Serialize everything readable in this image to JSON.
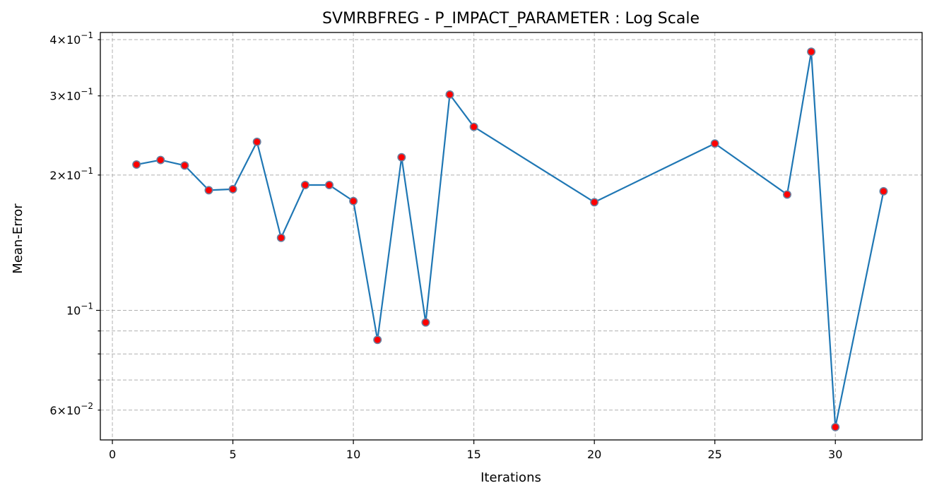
{
  "chart_data": {
    "type": "line",
    "title": "SVMRBFREG - P_IMPACT_PARAMETER : Log Scale",
    "xlabel": "Iterations",
    "ylabel": "Mean-Error",
    "yscale": "log",
    "xlim": [
      -0.5,
      33.6
    ],
    "ylim": [
      0.0515,
      0.415
    ],
    "grid": true,
    "x_ticks": [
      0,
      5,
      10,
      15,
      20,
      25,
      30
    ],
    "y_major_ticks": [
      {
        "value": 0.1,
        "mantissa": "",
        "base": "10",
        "exp": "−1"
      }
    ],
    "y_minor_ticks": [
      {
        "value": 0.06,
        "mantissa": "6",
        "base": "10",
        "exp": "−2"
      },
      {
        "value": 0.07,
        "mantissa": "",
        "base": "",
        "exp": ""
      },
      {
        "value": 0.08,
        "mantissa": "",
        "base": "",
        "exp": ""
      },
      {
        "value": 0.09,
        "mantissa": "",
        "base": "",
        "exp": ""
      },
      {
        "value": 0.2,
        "mantissa": "2",
        "base": "10",
        "exp": "−1"
      },
      {
        "value": 0.3,
        "mantissa": "3",
        "base": "10",
        "exp": "−1"
      },
      {
        "value": 0.4,
        "mantissa": "4",
        "base": "10",
        "exp": "−1"
      }
    ],
    "series": [
      {
        "line_color": "#1f77b4",
        "marker_face": "#ff0000",
        "marker_edge": "#6a80a0",
        "points": [
          {
            "x": 1,
            "y": 0.211
          },
          {
            "x": 2,
            "y": 0.216
          },
          {
            "x": 3,
            "y": 0.21
          },
          {
            "x": 4,
            "y": 0.185
          },
          {
            "x": 5,
            "y": 0.186
          },
          {
            "x": 6,
            "y": 0.237
          },
          {
            "x": 7,
            "y": 0.145
          },
          {
            "x": 8,
            "y": 0.19
          },
          {
            "x": 9,
            "y": 0.19
          },
          {
            "x": 10,
            "y": 0.175
          },
          {
            "x": 11,
            "y": 0.086
          },
          {
            "x": 12,
            "y": 0.219
          },
          {
            "x": 13,
            "y": 0.094
          },
          {
            "x": 14,
            "y": 0.302
          },
          {
            "x": 15,
            "y": 0.256
          },
          {
            "x": 20,
            "y": 0.174
          },
          {
            "x": 25,
            "y": 0.235
          },
          {
            "x": 28,
            "y": 0.181
          },
          {
            "x": 29,
            "y": 0.376
          },
          {
            "x": 30,
            "y": 0.055
          },
          {
            "x": 32,
            "y": 0.184
          }
        ]
      }
    ]
  }
}
